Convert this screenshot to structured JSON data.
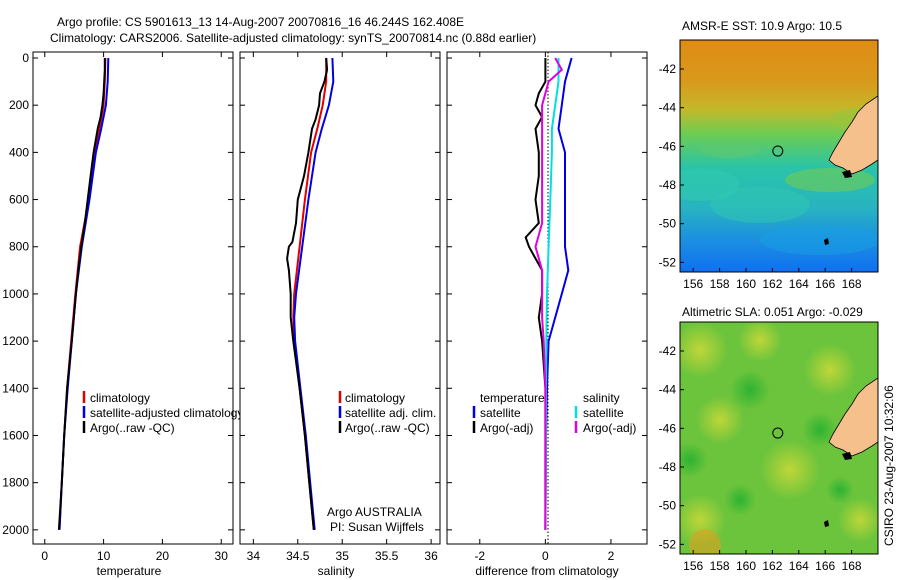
{
  "title": {
    "line1": "Argo profile: CS 5901613_13 14-Aug-2007 20070816_16 46.244S 162.408E",
    "line2": "Climatology: CARS2006. Satellite-adjusted climatology: synTS_20070814.nc (0.88d earlier)"
  },
  "credit": "CSIRO 23-Aug-2007 10:32:06",
  "colors": {
    "climatology": "#e00000",
    "satellite": "#0000e6",
    "argo": "#000000",
    "satellite_salinity": "#00e0e0",
    "argo_salinity": "#e000e0",
    "land": "#f5c08c"
  },
  "chart_data": [
    {
      "id": "temperature",
      "type": "line",
      "xlabel": "temperature",
      "ylabel": "",
      "xlim": [
        -2,
        32
      ],
      "ylim": [
        2060,
        0
      ],
      "xticks": [
        "0",
        "10",
        "20",
        "30"
      ],
      "xtick_values": [
        0,
        10,
        20,
        30
      ],
      "yticks": [
        "0",
        "200",
        "400",
        "600",
        "800",
        "1000",
        "1200",
        "1400",
        "1600",
        "1800",
        "2000"
      ],
      "ytick_values": [
        0,
        200,
        400,
        600,
        800,
        1000,
        1200,
        1400,
        1600,
        1800,
        2000
      ],
      "legend": [
        "climatology",
        "satellite-adjusted climatology",
        "Argo(..raw -QC)"
      ],
      "series": [
        {
          "name": "climatology",
          "color": "#e00000",
          "depth": [
            0,
            100,
            200,
            300,
            400,
            600,
            800,
            1000,
            1200,
            1400,
            1600,
            1800,
            2000
          ],
          "values": [
            10.3,
            10.2,
            10.0,
            9.3,
            8.5,
            7.5,
            6.0,
            5.2,
            4.5,
            3.8,
            3.3,
            2.9,
            2.5
          ]
        },
        {
          "name": "satellite-adjusted climatology",
          "color": "#0000e6",
          "depth": [
            0,
            100,
            200,
            300,
            400,
            600,
            800,
            1000,
            1200,
            1400,
            1600,
            1800,
            2000
          ],
          "values": [
            10.8,
            10.7,
            10.4,
            9.6,
            8.7,
            7.6,
            6.3,
            5.3,
            4.6,
            3.9,
            3.3,
            2.9,
            2.5
          ]
        },
        {
          "name": "Argo(..raw -QC)",
          "color": "#000000",
          "depth": [
            0,
            50,
            100,
            150,
            200,
            250,
            300,
            400,
            500,
            600,
            700,
            800,
            900,
            1000,
            1200,
            1400,
            1600,
            1800,
            2000
          ],
          "values": [
            10.2,
            10.2,
            10.1,
            10.0,
            9.8,
            9.5,
            9.0,
            8.3,
            7.8,
            7.3,
            6.8,
            6.2,
            5.7,
            5.3,
            4.6,
            3.8,
            3.3,
            2.9,
            2.4
          ]
        }
      ]
    },
    {
      "id": "salinity",
      "type": "line",
      "xlabel": "salinity",
      "ylabel": "",
      "xlim": [
        33.85,
        36.1
      ],
      "ylim": [
        2060,
        0
      ],
      "xticks": [
        "34",
        "34.5",
        "35",
        "35.5",
        "36"
      ],
      "xtick_values": [
        34,
        34.5,
        35,
        35.5,
        36
      ],
      "legend": [
        "climatology",
        "satellite adj. clim.",
        "Argo(..raw -QC)"
      ],
      "annotation": [
        "Argo AUSTRALIA",
        "PI: Susan Wijffels"
      ],
      "series": [
        {
          "name": "climatology",
          "color": "#e00000",
          "depth": [
            0,
            100,
            200,
            300,
            400,
            600,
            800,
            1000,
            1100,
            1200,
            1400,
            1600,
            1800,
            2000
          ],
          "values": [
            34.82,
            34.82,
            34.78,
            34.72,
            34.65,
            34.58,
            34.52,
            34.46,
            34.45,
            34.46,
            34.52,
            34.58,
            34.63,
            34.68
          ]
        },
        {
          "name": "satellite adj. clim.",
          "color": "#0000e6",
          "depth": [
            0,
            100,
            200,
            300,
            400,
            600,
            800,
            1000,
            1100,
            1200,
            1400,
            1600,
            1800,
            2000
          ],
          "values": [
            34.89,
            34.9,
            34.85,
            34.77,
            34.7,
            34.62,
            34.55,
            34.48,
            34.46,
            34.47,
            34.53,
            34.59,
            34.64,
            34.69
          ]
        },
        {
          "name": "Argo(..raw -QC)",
          "color": "#000000",
          "depth": [
            0,
            50,
            100,
            150,
            200,
            260,
            300,
            400,
            500,
            600,
            700,
            780,
            800,
            850,
            900,
            1000,
            1100,
            1200,
            1400,
            1600,
            1800,
            2000
          ],
          "values": [
            34.82,
            34.83,
            34.8,
            34.75,
            34.74,
            34.7,
            34.66,
            34.62,
            34.57,
            34.5,
            34.48,
            34.44,
            34.4,
            34.38,
            34.4,
            34.42,
            34.42,
            34.45,
            34.52,
            34.58,
            34.63,
            34.68
          ]
        }
      ]
    },
    {
      "id": "difference",
      "type": "line",
      "xlabel": "difference from climatology",
      "ylabel": "",
      "xlim": [
        -3,
        3.1
      ],
      "ylim": [
        2060,
        0
      ],
      "xticks": [
        "-2",
        "0",
        "2"
      ],
      "xtick_values": [
        -2,
        0,
        2
      ],
      "legend_headers": [
        "temperature",
        "salinity"
      ],
      "legend": [
        "satellite",
        "Argo(-adj)",
        "satellite",
        "Argo(-adj)"
      ],
      "series": [
        {
          "name": "temperature satellite",
          "color": "#0000e6",
          "depth": [
            0,
            100,
            200,
            300,
            400,
            600,
            800,
            900,
            1000,
            1100,
            1200,
            1400,
            1600,
            1800,
            2000
          ],
          "values": [
            0.8,
            0.6,
            0.5,
            0.4,
            0.6,
            0.6,
            0.6,
            0.7,
            0.5,
            0.3,
            0.1,
            0.05,
            0.02,
            0.01,
            0.0
          ]
        },
        {
          "name": "temperature Argo(-adj)",
          "color": "#000000",
          "depth": [
            0,
            100,
            150,
            200,
            250,
            300,
            400,
            500,
            600,
            700,
            760,
            800,
            850,
            900,
            1000,
            1100,
            1200,
            1400,
            1600,
            1800,
            2000
          ],
          "values": [
            0.0,
            0.0,
            -0.2,
            -0.3,
            -0.1,
            -0.3,
            -0.2,
            -0.2,
            -0.3,
            -0.2,
            -0.6,
            -0.5,
            -0.3,
            -0.1,
            -0.1,
            -0.2,
            -0.1,
            0.0,
            0.0,
            0.0,
            0.0
          ]
        },
        {
          "name": "salinity satellite",
          "color": "#00e0e0",
          "depth": [
            0,
            100,
            200,
            300,
            400,
            600,
            800,
            1000,
            1200,
            1400,
            1600,
            1800,
            2000
          ],
          "values": [
            0.4,
            0.4,
            0.3,
            0.2,
            0.2,
            0.15,
            0.1,
            0.05,
            0.03,
            0.02,
            0.02,
            0.01,
            0.0
          ]
        },
        {
          "name": "salinity Argo(-adj)",
          "color": "#e000e0",
          "depth": [
            0,
            50,
            100,
            200,
            300,
            400,
            500,
            600,
            700,
            800,
            900,
            1000,
            1100,
            1200,
            1400,
            1600,
            1800,
            2000
          ],
          "values": [
            0.3,
            0.5,
            0.1,
            -0.1,
            -0.1,
            -0.1,
            -0.1,
            -0.1,
            -0.1,
            -0.3,
            -0.1,
            -0.1,
            -0.1,
            -0.05,
            0.0,
            0.0,
            0.0,
            0.0
          ]
        }
      ]
    },
    {
      "id": "sst_map",
      "type": "heatmap",
      "title": "AMSR-E SST: 10.9 Argo: 10.5",
      "xlim": [
        155,
        170
      ],
      "ylim": [
        -52.5,
        -40.5
      ],
      "xticks": [
        "156",
        "158",
        "160",
        "162",
        "164",
        "166",
        "168"
      ],
      "xtick_values": [
        156,
        158,
        160,
        162,
        164,
        166,
        168
      ],
      "yticks": [
        "-42",
        "-44",
        "-46",
        "-48",
        "-50",
        "-52"
      ],
      "ytick_values": [
        -42,
        -44,
        -46,
        -48,
        -50,
        -52
      ],
      "marker": {
        "lon": 162.408,
        "lat": -46.244
      }
    },
    {
      "id": "sla_map",
      "type": "heatmap",
      "title": "Altimetric SLA: 0.051 Argo: -0.029",
      "xlim": [
        155,
        170
      ],
      "ylim": [
        -52.5,
        -40.5
      ],
      "xticks": [
        "156",
        "158",
        "160",
        "162",
        "164",
        "166",
        "168"
      ],
      "xtick_values": [
        156,
        158,
        160,
        162,
        164,
        166,
        168
      ],
      "yticks": [
        "-42",
        "-44",
        "-46",
        "-48",
        "-50",
        "-52"
      ],
      "ytick_values": [
        -42,
        -44,
        -46,
        -48,
        -50,
        -52
      ],
      "marker": {
        "lon": 162.408,
        "lat": -46.244
      }
    }
  ]
}
